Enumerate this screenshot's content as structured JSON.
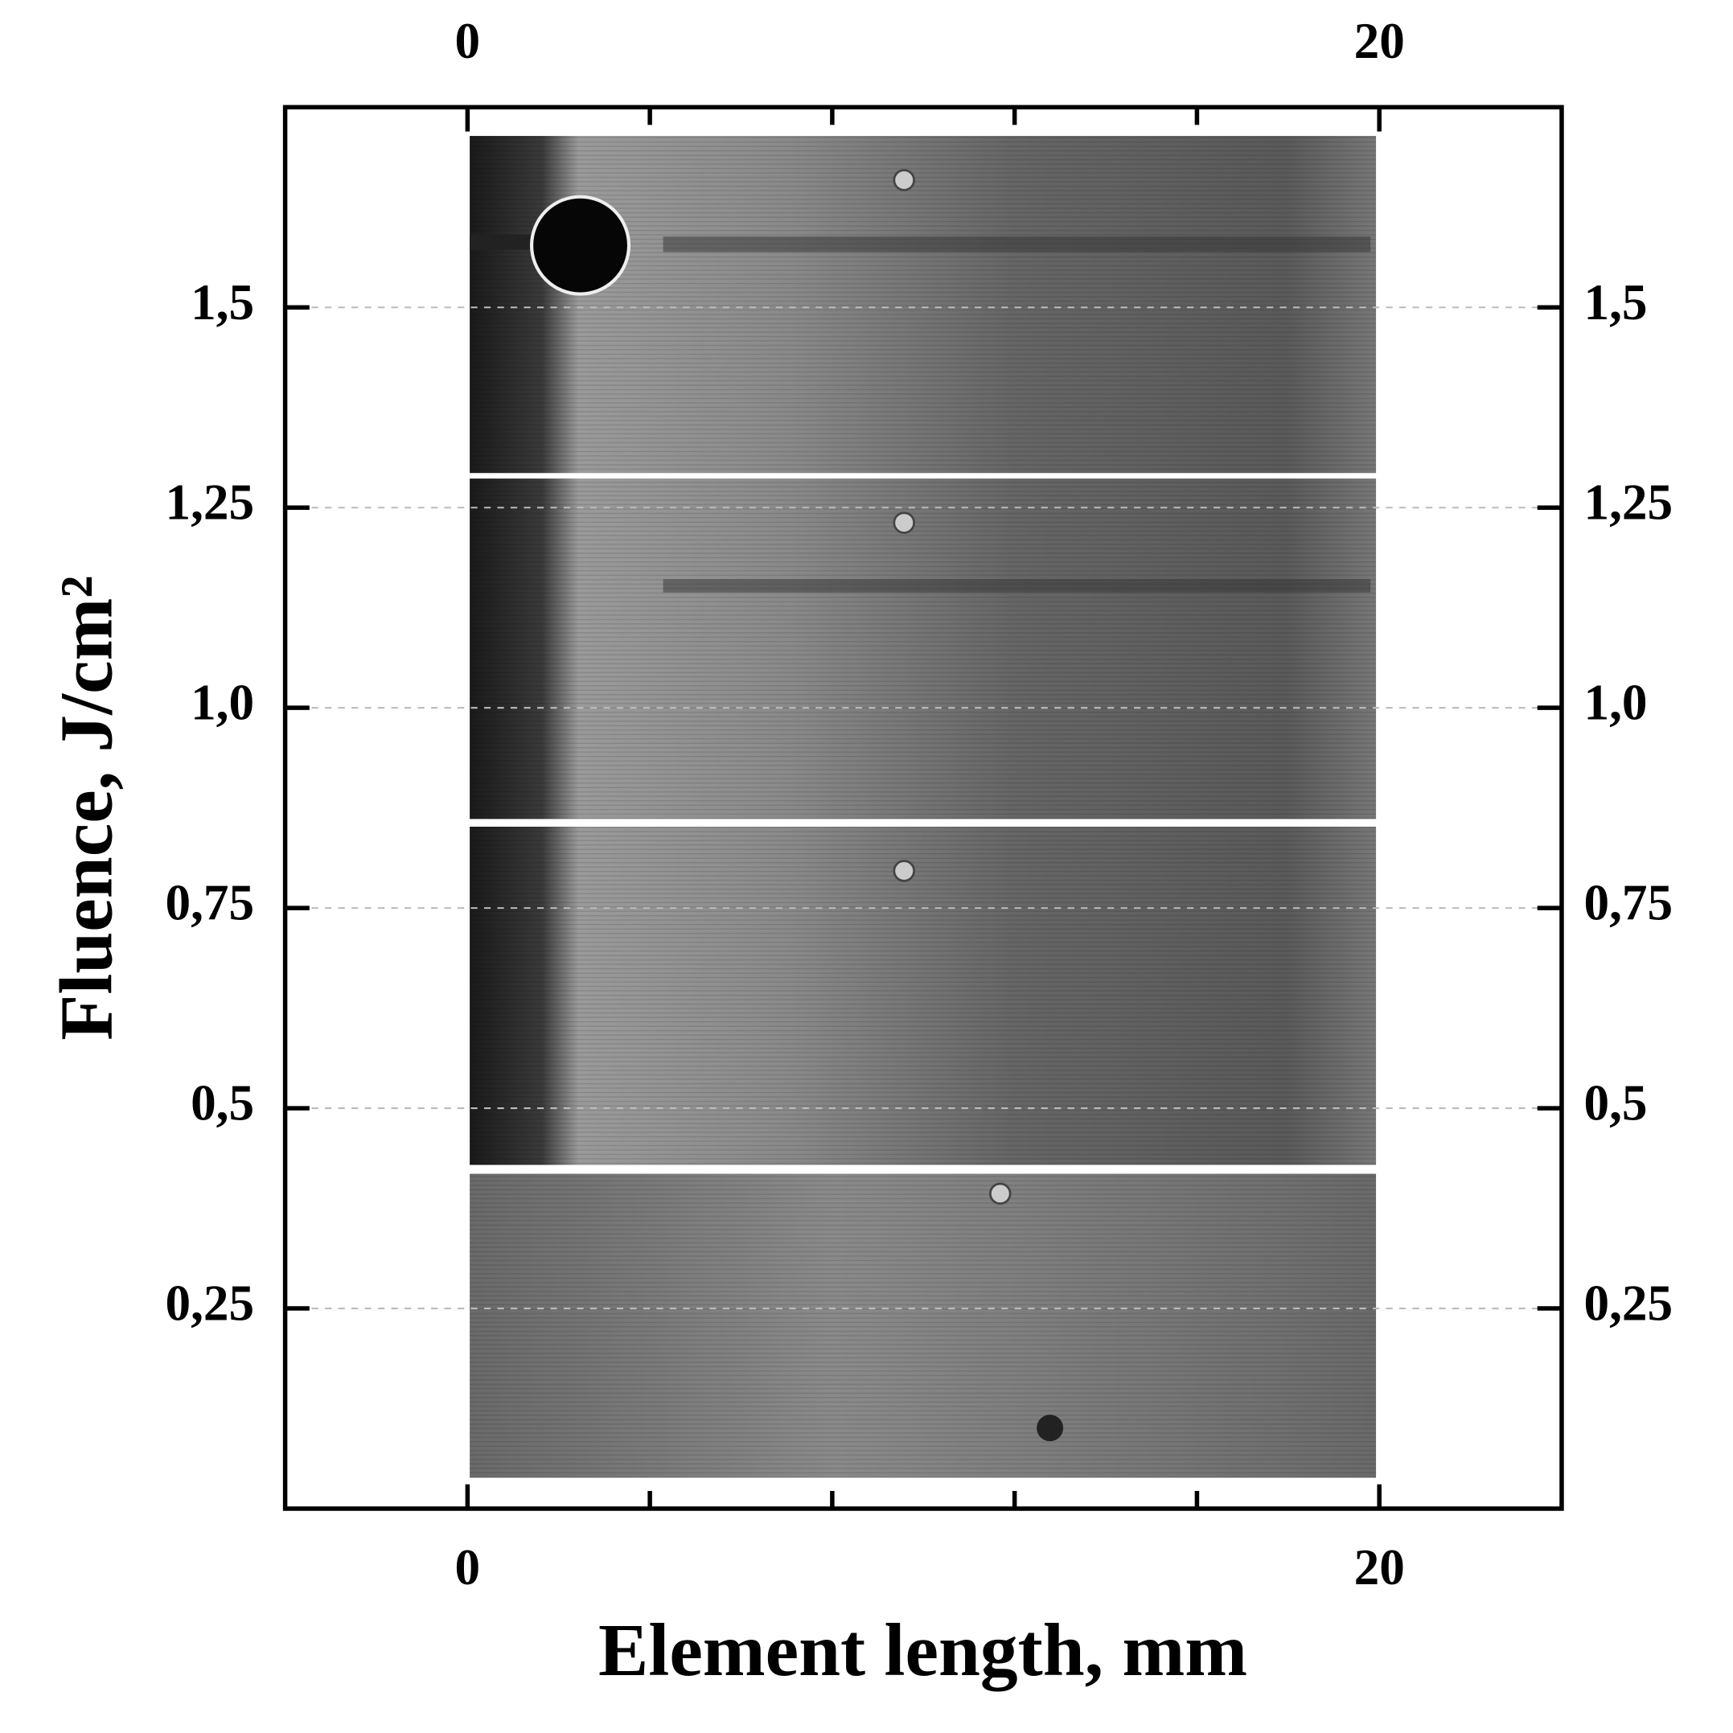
{
  "chart_data": {
    "type": "image-strips",
    "x_label": "Element length, mm",
    "y_label": "Fluence, J/cm²",
    "xlim": [
      -4,
      24
    ],
    "xticks": [
      0,
      20
    ],
    "xminor_ticks": [
      4,
      8,
      12,
      16
    ],
    "ylim": [
      0,
      1.75
    ],
    "yticks": [
      {
        "value": 0.25,
        "label": "0,25"
      },
      {
        "value": 0.5,
        "label": "0,5"
      },
      {
        "value": 0.75,
        "label": "0,75"
      },
      {
        "value": 1.0,
        "label": "1,0"
      },
      {
        "value": 1.25,
        "label": "1,25"
      },
      {
        "value": 1.5,
        "label": "1,5"
      }
    ],
    "grid": true
  }
}
